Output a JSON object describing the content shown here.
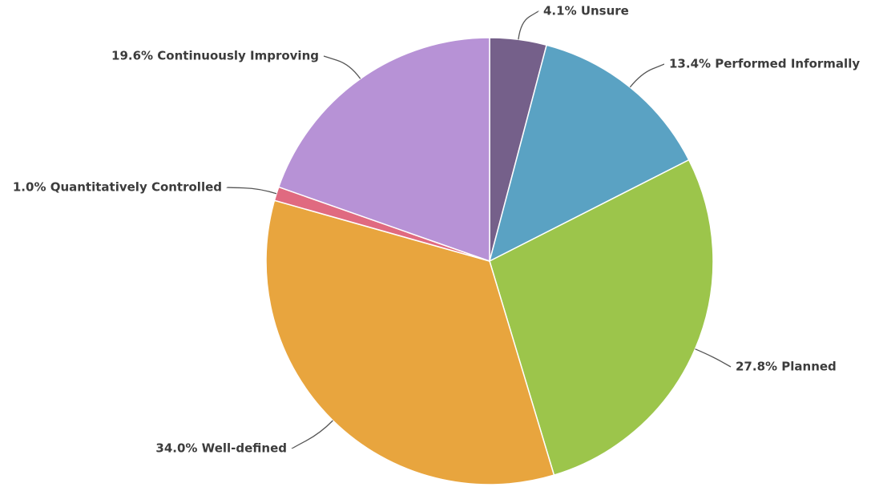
{
  "chart_data": {
    "type": "pie",
    "title": "",
    "start_angle_deg": 0,
    "direction": "clockwise",
    "slices": [
      {
        "label": "Unsure",
        "value": 4.1,
        "display": "4.1% Unsure",
        "color": "#75608a"
      },
      {
        "label": "Performed Informally",
        "value": 13.4,
        "display": "13.4% Performed Informally",
        "color": "#5aa2c3"
      },
      {
        "label": "Planned",
        "value": 27.8,
        "display": "27.8% Planned",
        "color": "#9cc54b"
      },
      {
        "label": "Well-defined",
        "value": 34.0,
        "display": "34.0% Well-defined",
        "color": "#e8a53e"
      },
      {
        "label": "Quantitatively Controlled",
        "value": 1.0,
        "display": "1.0% Quantitatively Controlled",
        "color": "#e06a80"
      },
      {
        "label": "Continuously Improving",
        "value": 19.6,
        "display": "19.6% Continuously Improving",
        "color": "#b792d6"
      }
    ]
  }
}
